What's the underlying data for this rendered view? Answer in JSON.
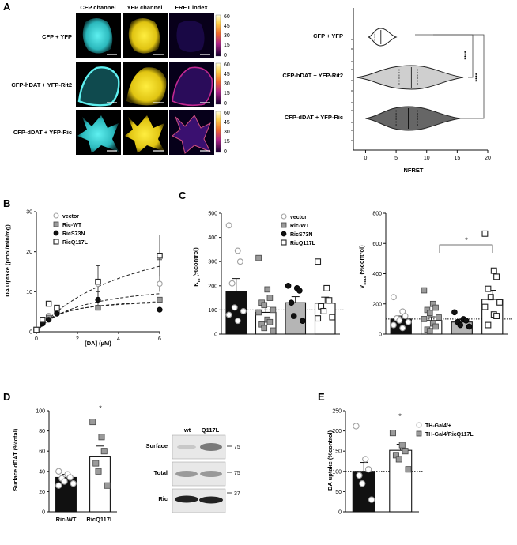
{
  "panel_letters": {
    "a": "A",
    "b": "B",
    "c": "C",
    "d": "D",
    "e": "E"
  },
  "colors": {
    "cfp": "#49d6d6",
    "yfp": "#f2dc1c",
    "vector_edge": "#9a9a9a",
    "ric_wt_fill": "#9a9a9a",
    "ric_s73n_fill": "#111111",
    "ric_q117l_fill": "#ffffff",
    "violin_cfp_yfp": "#ffffff",
    "violin_hdat": "#cfcfcf",
    "violin_ddat": "#666666"
  },
  "panelA": {
    "col_headers": [
      "CFP channel",
      "YFP channel",
      "FRET index"
    ],
    "row_labels": [
      "CFP + YFP",
      "CFP-hDAT + YFP-Rit2",
      "CFP-dDAT + YFP-Ric"
    ],
    "colorbar_ticks": [
      "60",
      "45",
      "30",
      "15",
      "0"
    ]
  },
  "chart_data": [
    {
      "id": "A-violin",
      "type": "violin",
      "xlabel": "NFRET",
      "xlim": [
        -2,
        20
      ],
      "xticks": [
        "0",
        "5",
        "10",
        "15",
        "20"
      ],
      "categories": [
        "CFP + YFP",
        "CFP-hDAT + YFP-Rit2",
        "CFP-dDAT + YFP-Ric"
      ],
      "medians": [
        2.5,
        7.5,
        7.0
      ],
      "quartiles": [
        [
          1.5,
          3.5
        ],
        [
          5.5,
          8.5
        ],
        [
          5.0,
          8.5
        ]
      ],
      "ranges": [
        [
          0.5,
          5.0
        ],
        [
          -1.5,
          16.0
        ],
        [
          0.0,
          15.5
        ]
      ],
      "significance": [
        "****",
        "****"
      ]
    },
    {
      "id": "B",
      "type": "line",
      "ylabel": "DA Uptake (pmol/min/mg)",
      "xlabel": "[DA] (µM)",
      "xlim": [
        0,
        6
      ],
      "ylim": [
        0,
        30
      ],
      "xticks": [
        "0",
        "2",
        "4",
        "6"
      ],
      "yticks": [
        "0",
        "10",
        "20",
        "30"
      ],
      "x": [
        0,
        0.3,
        0.6,
        1,
        3,
        6
      ],
      "legend": [
        "vector",
        "Ric-WT",
        "RicS73N",
        "RicQ117L"
      ],
      "series": [
        {
          "name": "vector",
          "values": [
            0.5,
            2.5,
            4,
            5.5,
            12,
            12
          ]
        },
        {
          "name": "Ric-WT",
          "values": [
            0.5,
            2.5,
            3.5,
            5,
            6,
            8
          ]
        },
        {
          "name": "RicS73N",
          "values": [
            0.5,
            2,
            3,
            4.5,
            8,
            5.5
          ]
        },
        {
          "name": "RicQ117L",
          "values": [
            0.5,
            3,
            7,
            6,
            12.5,
            19
          ]
        }
      ]
    },
    {
      "id": "C-Km",
      "type": "bar",
      "ylabel": "Km (%control)",
      "ylim": [
        0,
        500
      ],
      "yticks": [
        "0",
        "100",
        "200",
        "300",
        "400",
        "500"
      ],
      "categories": [
        "vector",
        "Ric-WT",
        "RicS73N",
        "RicQ117L"
      ],
      "values": [
        175,
        90,
        130,
        128
      ],
      "errors": [
        55,
        25,
        25,
        25
      ],
      "points": [
        [
          450,
          345,
          300,
          210,
          110,
          95,
          80,
          55
        ],
        [
          315,
          185,
          150,
          130,
          120,
          100,
          90,
          60,
          50,
          40,
          25,
          15
        ],
        [
          200,
          190,
          180,
          130,
          75,
          55
        ],
        [
          300,
          190,
          140,
          115,
          95,
          70,
          65
        ]
      ],
      "reference_line": 100
    },
    {
      "id": "C-Vmax",
      "type": "bar",
      "ylabel": "Vmax (%control)",
      "ylim": [
        0,
        800
      ],
      "yticks": [
        "0",
        "200",
        "400",
        "600",
        "800"
      ],
      "categories": [
        "vector",
        "Ric-WT",
        "RicS73N",
        "RicQ117L"
      ],
      "values": [
        100,
        90,
        80,
        230
      ],
      "errors": [
        20,
        25,
        15,
        60
      ],
      "points": [
        [
          245,
          150,
          120,
          105,
          90,
          80,
          60,
          40
        ],
        [
          290,
          200,
          175,
          160,
          140,
          110,
          100,
          70,
          50,
          30,
          20
        ],
        [
          145,
          100,
          90,
          80,
          60,
          50
        ],
        [
          665,
          420,
          380,
          300,
          245,
          210,
          180,
          130,
          120,
          60
        ]
      ],
      "reference_line": 100,
      "significance": "*"
    },
    {
      "id": "D-bar",
      "type": "bar",
      "ylabel": "Surface dDAT (%total)",
      "ylim": [
        0,
        100
      ],
      "yticks": [
        "0",
        "20",
        "40",
        "60",
        "80",
        "100"
      ],
      "categories": [
        "Ric-WT",
        "RicQ117L"
      ],
      "values": [
        34,
        55
      ],
      "errors": [
        3,
        10
      ],
      "points": [
        [
          40,
          37,
          34,
          33,
          30,
          28,
          26
        ],
        [
          89,
          74,
          60,
          48,
          40,
          26
        ]
      ],
      "significance": "*"
    },
    {
      "id": "E",
      "type": "bar",
      "ylabel": "DA uptake (%control)",
      "ylim": [
        0,
        250
      ],
      "yticks": [
        "0",
        "50",
        "100",
        "150",
        "200",
        "250"
      ],
      "categories": [
        "TH-Gal4/+",
        "TH-Gal4/RicQ117L"
      ],
      "legend": [
        "TH-Gal4/+",
        "TH-Gal4/RicQ117L"
      ],
      "values": [
        100,
        152
      ],
      "errors": [
        22,
        15
      ],
      "points": [
        [
          212,
          130,
          105,
          90,
          70,
          30
        ],
        [
          195,
          165,
          150,
          140,
          130,
          105
        ]
      ],
      "reference_line": 100,
      "significance": "*"
    }
  ],
  "blot": {
    "lane_labels": [
      "wt",
      "Q117L"
    ],
    "row_labels": [
      "Surface",
      "Total",
      "Ric"
    ],
    "mw_markers": [
      "75",
      "75",
      "37"
    ]
  }
}
